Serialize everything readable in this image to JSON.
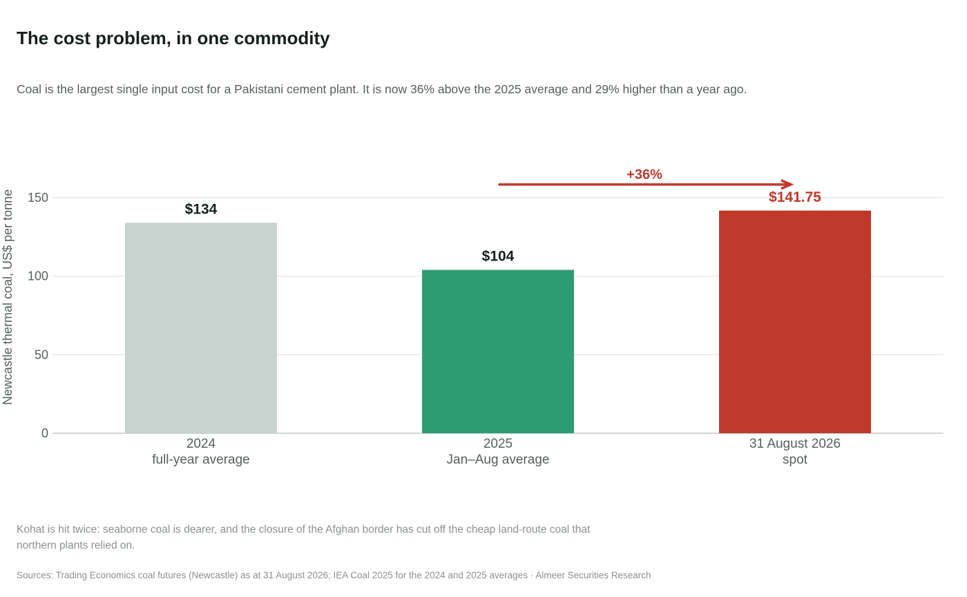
{
  "header": {
    "title": "The cost problem, in one commodity",
    "subtitle": "Coal is the largest single input cost for a Pakistani cement plant. It is now 36% above the 2025 average and 29% higher than a year ago."
  },
  "footer": {
    "note": "Kohat is hit twice: seaborne coal is dearer, and the closure of the Afghan border has cut off the cheap land-route coal that northern plants relied on.",
    "source": "Sources: Trading Economics coal futures (Newcastle) as at 31 August 2026; IEA Coal 2025 for the 2024 and 2025 averages · Almeer Securities Research"
  },
  "chart_data": {
    "type": "bar",
    "categories": [
      [
        "2024",
        "full-year average"
      ],
      [
        "2025",
        "Jan–Aug average"
      ],
      [
        "31 August 2026",
        "spot"
      ]
    ],
    "values": [
      134,
      104,
      141.75
    ],
    "data_labels": [
      "$134",
      "$104",
      "$141.75"
    ],
    "bar_colors": [
      "#c8d2cf",
      "#2e9c72",
      "#c0392b"
    ],
    "label_colors": [
      "#17201d",
      "#17201d",
      "#c0392b"
    ],
    "ylabel": "Newcastle thermal coal, US$ per tonne",
    "yticks": [
      0,
      50,
      100,
      150
    ],
    "ylim": [
      0,
      150
    ],
    "grid": true,
    "annotation": {
      "text": "+36%",
      "from_category": 1,
      "to_category": 2,
      "color": "#c0392b"
    }
  }
}
